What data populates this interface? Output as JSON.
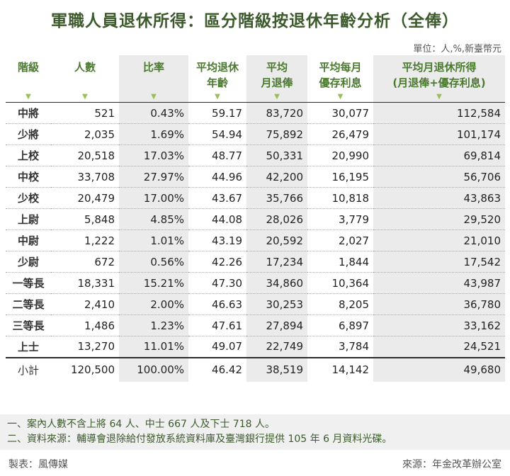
{
  "title": "軍職人員退休所得：區分階級按退休年齡分析（全俸）",
  "unit": "單位：人,%,新臺幣元",
  "headers": [
    {
      "line1": "階級",
      "line2": ""
    },
    {
      "line1": "人數",
      "line2": ""
    },
    {
      "line1": "比率",
      "line2": ""
    },
    {
      "line1": "平均退休",
      "line2": "年齡"
    },
    {
      "line1": "平均",
      "line2": "月退俸"
    },
    {
      "line1": "平均每月",
      "line2": "優存利息"
    },
    {
      "line1": "平均月退休所得",
      "line2": "(月退俸+優存利息)"
    }
  ],
  "arrow_glyph": "▼",
  "rows": [
    [
      "中將",
      "521",
      "0.43%",
      "59.17",
      "83,720",
      "30,077",
      "112,584"
    ],
    [
      "少將",
      "2,035",
      "1.69%",
      "54.94",
      "75,892",
      "26,479",
      "101,174"
    ],
    [
      "上校",
      "20,518",
      "17.03%",
      "48.77",
      "50,331",
      "20,990",
      "69,814"
    ],
    [
      "中校",
      "33,708",
      "27.97%",
      "44.96",
      "42,200",
      "16,195",
      "56,706"
    ],
    [
      "少校",
      "20,479",
      "17.00%",
      "43.67",
      "35,766",
      "10,818",
      "43,863"
    ],
    [
      "上尉",
      "5,848",
      "4.85%",
      "44.08",
      "28,026",
      "3,779",
      "29,520"
    ],
    [
      "中尉",
      "1,222",
      "1.01%",
      "43.19",
      "20,592",
      "2,027",
      "21,010"
    ],
    [
      "少尉",
      "672",
      "0.56%",
      "42.26",
      "17,234",
      "1,844",
      "17,542"
    ],
    [
      "一等長",
      "18,331",
      "15.21%",
      "47.30",
      "34,860",
      "10,364",
      "43,987"
    ],
    [
      "二等長",
      "2,410",
      "2.00%",
      "46.63",
      "30,253",
      "8,205",
      "36,780"
    ],
    [
      "三等長",
      "1,486",
      "1.23%",
      "47.61",
      "27,894",
      "6,897",
      "33,162"
    ],
    [
      "上士",
      "13,270",
      "11.01%",
      "49.07",
      "22,749",
      "3,784",
      "24,521"
    ]
  ],
  "total": [
    "小計",
    "120,500",
    "100.00%",
    "46.42",
    "38,519",
    "14,142",
    "49,680"
  ],
  "notes": [
    "一、案內人數不含上將 64 人、中士 667 人及下士 718 人。",
    "二、資料來源：輔導會退除給付發放系統資料庫及臺灣銀行提供 105 年 6 月資料光碟。"
  ],
  "footer": {
    "producer": "製表：風傳媒",
    "source": "來源：年金改革辦公室"
  },
  "colors": {
    "title": "#3c5a2c",
    "header": "#4a7a2e",
    "arrow": "#9bbd5e",
    "shade": "#ebebeb",
    "notes_bg": "#f0f0f0"
  }
}
